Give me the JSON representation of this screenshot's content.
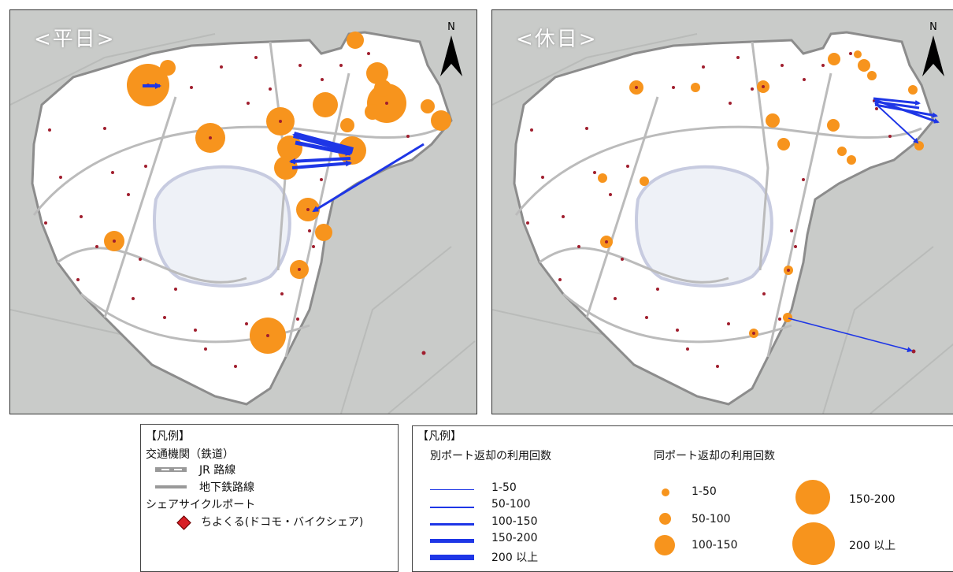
{
  "maps": {
    "weekday": {
      "title": "<平日>",
      "north": "N"
    },
    "holiday": {
      "title": "<休日>",
      "north": "N"
    }
  },
  "legend_left": {
    "heading": "【凡例】",
    "transport_title": "交通機関（鉄道）",
    "jr_label": "JR 路線",
    "subway_label": "地下鉄路線",
    "port_title": "シェアサイクルポート",
    "port_label": "ちよくる(ドコモ・バイクシェア)"
  },
  "legend_right": {
    "heading": "【凡例】",
    "other_port_title": "別ポート返却の利用回数",
    "other_port_items": [
      "1-50",
      "50-100",
      "100-150",
      "150-200",
      "200 以上"
    ],
    "same_port_title": "同ポート返却の利用回数",
    "same_port_items": [
      "1-50",
      "50-100",
      "100-150",
      "150-200",
      "200 以上"
    ]
  },
  "colors": {
    "flow_arrow": "#1e36e6",
    "same_port_circle": "#f7941d",
    "port_marker": "#a01e2e",
    "district_fill": "#ffffff",
    "outside_fill": "#c9cbc9"
  }
}
